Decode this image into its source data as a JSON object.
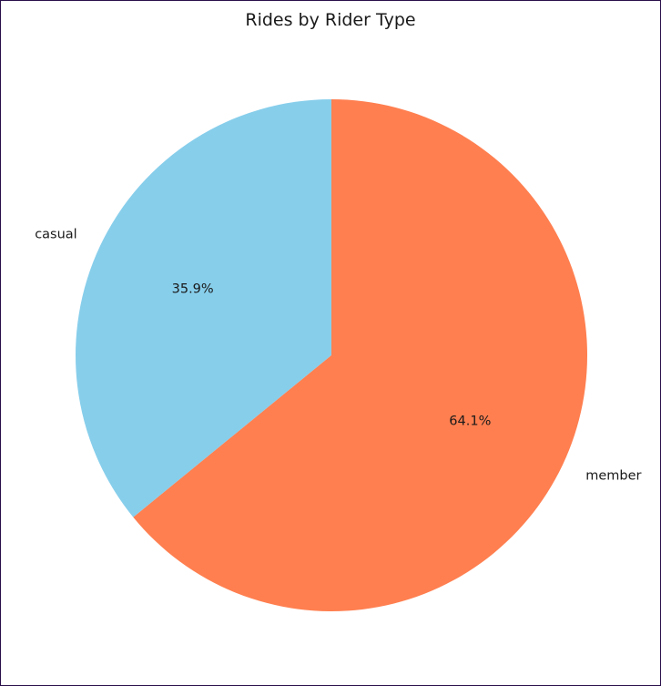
{
  "chart_data": {
    "type": "pie",
    "title": "Rides by Rider Type",
    "labels": [
      "casual",
      "member"
    ],
    "values": [
      35.9,
      64.1
    ],
    "percent_labels": [
      "35.9%",
      "64.1%"
    ],
    "colors": [
      "#87ceeb",
      "#ff7f50"
    ],
    "start_angle_deg": 90,
    "direction": "counterclockwise"
  }
}
